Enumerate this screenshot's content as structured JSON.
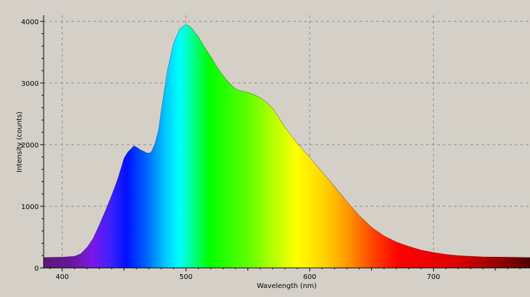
{
  "chart_data": {
    "type": "area",
    "title": "",
    "xlabel": "Wavelength (nm)",
    "ylabel": "Intensity (counts)",
    "xlim": [
      385,
      778
    ],
    "ylim": [
      0,
      4100
    ],
    "x_ticks": [
      400,
      500,
      600,
      700
    ],
    "y_ticks": [
      0,
      1000,
      2000,
      3000,
      4000
    ],
    "x_tick_labels": [
      "400",
      "500",
      "600",
      "700"
    ],
    "y_tick_labels": [
      "0",
      "1000",
      "2000",
      "3000",
      "4000"
    ],
    "grid": true,
    "legend": "none",
    "fill": "visible-spectrum-gradient",
    "series": [
      {
        "x": [
          385,
          400,
          410,
          415,
          420,
          425,
          430,
          435,
          440,
          445,
          450,
          453,
          455,
          458,
          460,
          463,
          465,
          468,
          470,
          472,
          475,
          478,
          480,
          485,
          490,
          495,
          500,
          503,
          505,
          510,
          515,
          520,
          525,
          530,
          535,
          540,
          545,
          550,
          555,
          560,
          565,
          570,
          575,
          580,
          590,
          600,
          610,
          620,
          630,
          640,
          650,
          660,
          670,
          680,
          690,
          700,
          710,
          720,
          740,
          760,
          778
        ],
        "y": [
          170,
          175,
          190,
          230,
          330,
          480,
          700,
          930,
          1180,
          1450,
          1780,
          1880,
          1920,
          1980,
          1960,
          1920,
          1900,
          1870,
          1860,
          1880,
          2020,
          2250,
          2550,
          3200,
          3650,
          3880,
          3950,
          3920,
          3880,
          3750,
          3580,
          3430,
          3260,
          3120,
          3000,
          2900,
          2870,
          2850,
          2810,
          2760,
          2690,
          2590,
          2440,
          2280,
          2020,
          1790,
          1560,
          1320,
          1080,
          850,
          660,
          520,
          420,
          350,
          290,
          250,
          220,
          200,
          180,
          175,
          170
        ]
      }
    ]
  }
}
